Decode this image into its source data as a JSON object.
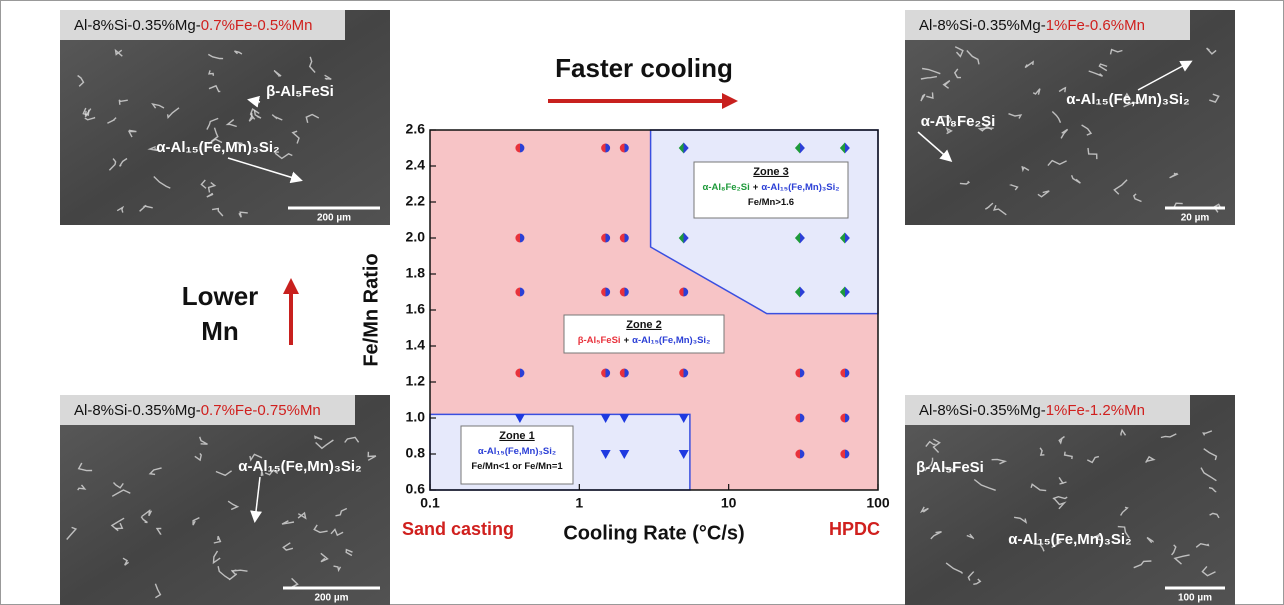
{
  "chart_data": {
    "type": "scatter",
    "x_label": "Cooling Rate (°C/s)",
    "y_label": "Fe/Mn Ratio",
    "x_scale": "log",
    "xlim": [
      0.1,
      100
    ],
    "xticks": [
      0.1,
      1,
      10,
      100
    ],
    "ylim": [
      0.6,
      2.6
    ],
    "yticks": [
      0.6,
      0.8,
      {
        "value": 1.0,
        "label": "1.0"
      },
      1.2,
      1.4,
      1.6,
      1.8,
      {
        "value": 2.0,
        "label": "2.0"
      },
      2.2,
      2.4,
      2.6
    ],
    "background": "#f7c4c6",
    "series": [
      {
        "marker": "circle",
        "colors": [
          "#e8323c",
          "#2b3fd6"
        ],
        "x": [
          0.4,
          0.4,
          0.4,
          0.4,
          1.5,
          1.5,
          1.5,
          1.5,
          2,
          2,
          2,
          2,
          5,
          5,
          30,
          30,
          30,
          60,
          60,
          60
        ],
        "values": [
          2.5,
          2.0,
          1.7,
          1.25,
          2.5,
          2.0,
          1.7,
          1.25,
          2.5,
          2.0,
          1.7,
          1.25,
          1.7,
          1.25,
          1.25,
          1.0,
          0.8,
          1.25,
          1.0,
          0.8
        ]
      },
      {
        "marker": "triangle",
        "colors": [
          "#1f3ae0"
        ],
        "x": [
          0.4,
          1.5,
          1.5,
          2,
          2,
          5,
          5
        ],
        "values": [
          1.0,
          1.0,
          0.8,
          1.0,
          0.8,
          1.0,
          0.8
        ]
      },
      {
        "marker": "diamond",
        "colors": [
          "#1e9a3a",
          "#2b3fd6"
        ],
        "x": [
          5,
          5,
          30,
          30,
          30,
          60,
          60,
          60
        ],
        "values": [
          2.5,
          2.0,
          2.5,
          2.0,
          1.7,
          2.5,
          2.0,
          1.7
        ]
      }
    ],
    "regions": [
      {
        "fill": "#e6e9fb",
        "stroke": "#3a4fe0",
        "x": [
          0.1,
          5.5,
          5.5,
          0.1
        ],
        "y": [
          1.02,
          1.02,
          0.6,
          0.6
        ]
      },
      {
        "fill": "#e6e9fb",
        "stroke": "#3a4fe0",
        "x": [
          3,
          3,
          18,
          100,
          100
        ],
        "y": [
          2.6,
          1.95,
          1.58,
          1.58,
          2.6
        ]
      }
    ],
    "zones": [
      {
        "title": "Zone 1",
        "lines": [
          [
            {
              "text": "α-Al₁₅(Fe,Mn)₃Si₂",
              "color": "#2b3fd6"
            }
          ],
          [
            {
              "text": "Fe/Mn<1 or Fe/Mn=1",
              "color": "#111111"
            }
          ]
        ]
      },
      {
        "title": "Zone 2",
        "lines": [
          [
            {
              "text": "β-Al₅FeSi",
              "color": "#e8323c"
            },
            {
              "text": "+",
              "color": "#111111"
            },
            {
              "text": "α-Al₁₅(Fe,Mn)₃Si₂",
              "color": "#2b3fd6"
            }
          ]
        ]
      },
      {
        "title": "Zone 3",
        "lines": [
          [
            {
              "text": "α-Al₈Fe₂Si",
              "color": "#1e9a3a"
            },
            {
              "text": "+",
              "color": "#111111"
            },
            {
              "text": "α-Al₁₅(Fe,Mn)₃Si₂",
              "color": "#2b3fd6"
            }
          ],
          [
            {
              "text": "Fe/Mn>1.6",
              "color": "#111111"
            }
          ]
        ]
      }
    ],
    "x_end_labels": [
      "Sand casting",
      "HPDC"
    ]
  },
  "annotations": {
    "faster_cooling": "Faster cooling",
    "lower_mn": [
      "Lower",
      "Mn"
    ]
  },
  "panels": [
    {
      "label": [
        "Al-8%Si-0.35%Mg-",
        "0.7%Fe-0.5%Mn"
      ],
      "phases": [
        "β-Al₅FeSi",
        "α-Al₁₅(Fe,Mn)₃Si₂"
      ],
      "scale_bar": "200 µm"
    },
    {
      "label": [
        "Al-8%Si-0.35%Mg-",
        "1%Fe-0.6%Mn"
      ],
      "phases": [
        "α-Al₁₅(Fe,Mn)₃Si₂",
        "α-Al₈Fe₂Si"
      ],
      "scale_bar": "20 µm"
    },
    {
      "label": [
        "Al-8%Si-0.35%Mg-",
        "0.7%Fe-0.75%Mn"
      ],
      "phases": [
        "α-Al₁₅(Fe,Mn)₃Si₂"
      ],
      "scale_bar": "200 µm"
    },
    {
      "label": [
        "Al-8%Si-0.35%Mg-",
        "1%Fe-1.2%Mn"
      ],
      "phases": [
        "β-Al₅FeSi",
        "α-Al₁₅(Fe,Mn)₃Si₂"
      ],
      "scale_bar": "100 µm"
    }
  ]
}
